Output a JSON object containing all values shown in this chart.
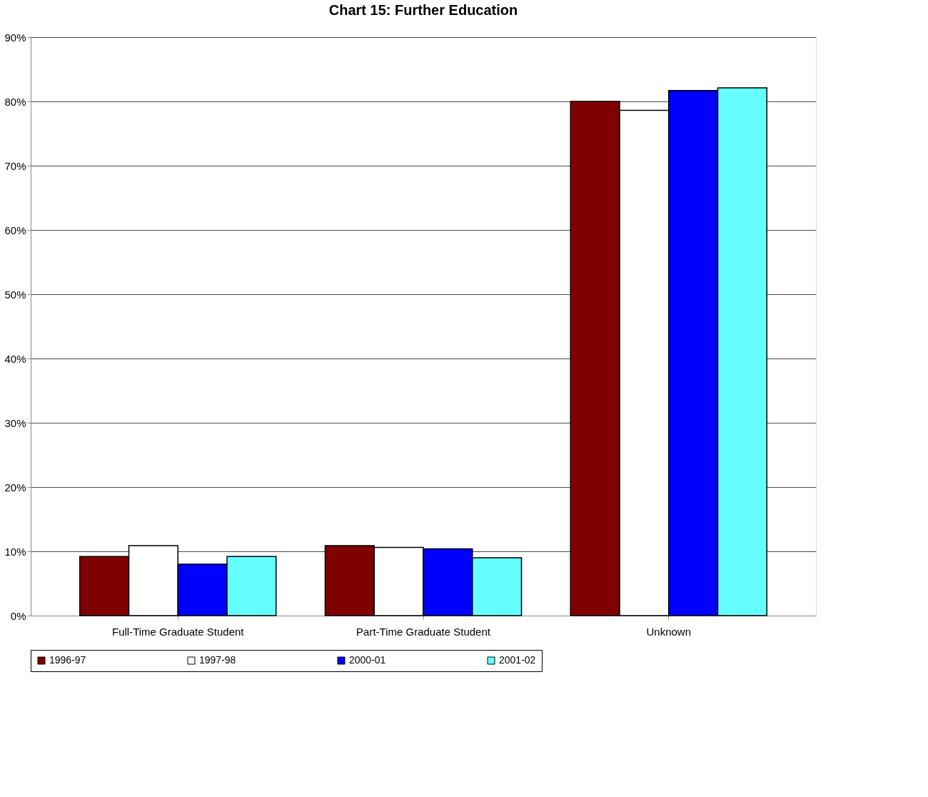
{
  "chart_data": {
    "type": "bar",
    "title": "Chart 15:  Further Education",
    "categories": [
      "Full-Time Graduate Student",
      "Part-Time Graduate Student",
      "Unknown"
    ],
    "series": [
      {
        "name": "1996-97",
        "color": "#800000",
        "values": [
          9.2,
          10.9,
          80.0
        ]
      },
      {
        "name": "1997-98",
        "color": "#ffffff",
        "values": [
          10.9,
          10.6,
          78.6
        ]
      },
      {
        "name": "2000-01",
        "color": "#0000ff",
        "values": [
          8.0,
          10.4,
          81.7
        ]
      },
      {
        "name": "2001-02",
        "color": "#66ffff",
        "values": [
          9.2,
          9.0,
          82.1
        ]
      }
    ],
    "ylim": [
      0,
      90
    ],
    "yticks": [
      {
        "value": 0,
        "label": "0%"
      },
      {
        "value": 10,
        "label": "10%"
      },
      {
        "value": 20,
        "label": "20%"
      },
      {
        "value": 30,
        "label": "30%"
      },
      {
        "value": 40,
        "label": "40%"
      },
      {
        "value": 50,
        "label": "50%"
      },
      {
        "value": 60,
        "label": "60%"
      },
      {
        "value": 70,
        "label": "70%"
      },
      {
        "value": 80,
        "label": "80%"
      },
      {
        "value": 90,
        "label": "90%"
      }
    ],
    "grid": "y",
    "legend": "bottom"
  }
}
